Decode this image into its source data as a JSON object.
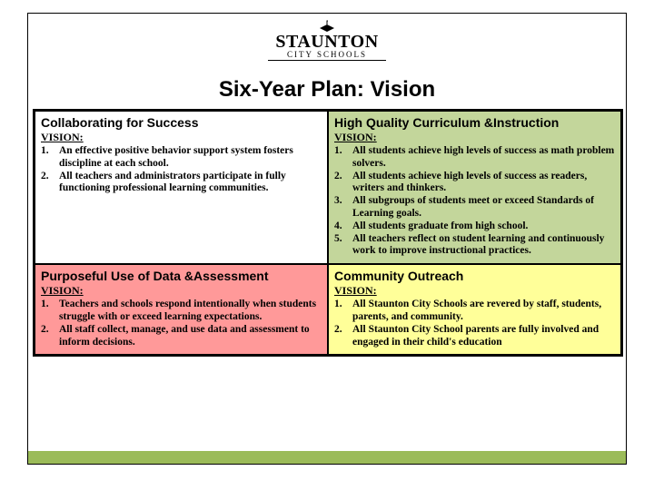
{
  "logo": {
    "name": "STAUNTON",
    "sub": "CITY SCHOOLS"
  },
  "title": "Six-Year Plan:  Vision",
  "visionLabel": "VISION:",
  "quads": {
    "tl": {
      "heading": "Collaborating for Success",
      "bg": "#ffffff",
      "items": [
        "An effective positive behavior support system fosters discipline at each school.",
        "All teachers and administrators participate in fully functioning professional learning communities."
      ]
    },
    "tr": {
      "heading": "High Quality Curriculum &Instruction",
      "bg": "#c3d69b",
      "items": [
        "All students achieve high levels of success as math problem solvers.",
        "All students achieve high levels of success as readers, writers and thinkers.",
        "All subgroups of students meet or exceed Standards of Learning goals.",
        "All students graduate from high school.",
        "All teachers reflect on student learning and continuously work to improve instructional practices."
      ]
    },
    "bl": {
      "heading": "Purposeful Use of Data &Assessment",
      "bg": "#ff9999",
      "items": [
        "Teachers and schools respond intentionally when students struggle with or exceed learning expectations.",
        "All staff collect, manage, and use data and assessment to inform decisions."
      ]
    },
    "br": {
      "heading": "Community Outreach",
      "bg": "#ffff99",
      "items": [
        "All Staunton City Schools are revered by staff, students, parents, and community.",
        "All Staunton City School parents are fully involved and engaged in their child's education"
      ]
    }
  }
}
